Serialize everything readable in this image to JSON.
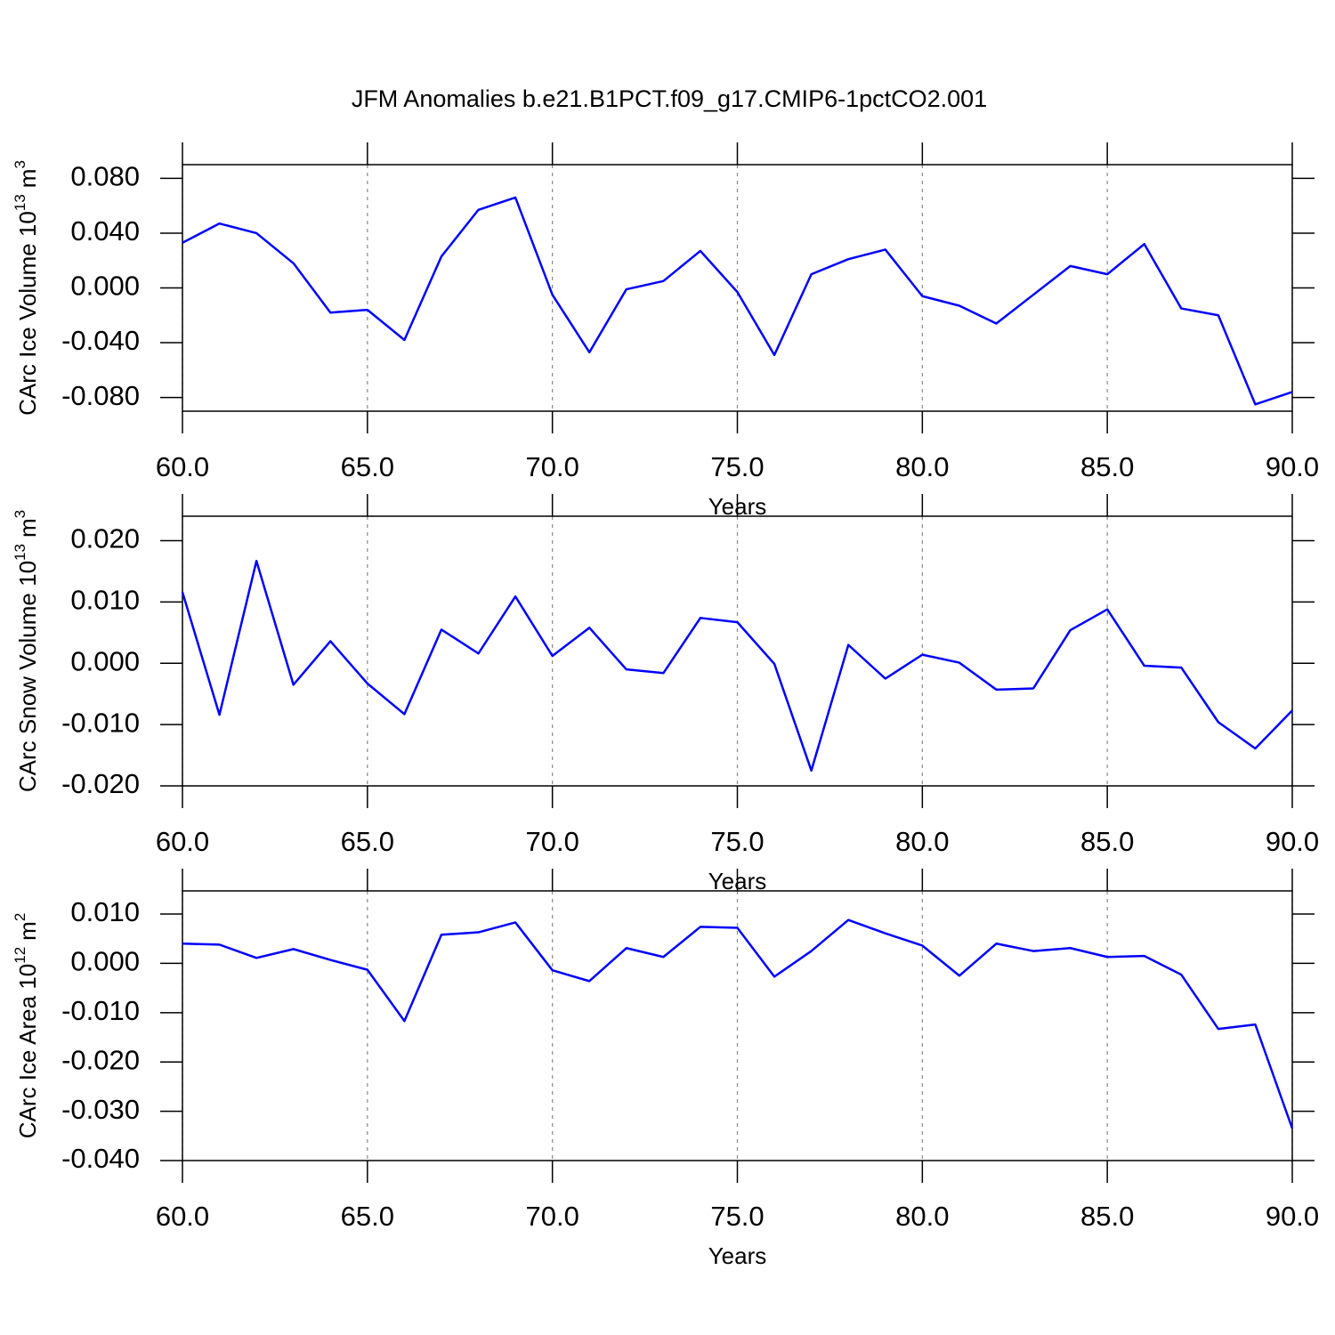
{
  "title": "JFM Anomalies b.e21.B1PCT.f09_g17.CMIP6-1pctCO2.001",
  "chart_data": [
    {
      "type": "line",
      "ylabel": [
        "CArc Ice Volume 10",
        "13",
        "m",
        "3"
      ],
      "xlabel": "Years",
      "x": [
        60,
        61,
        62,
        63,
        64,
        65,
        66,
        67,
        68,
        69,
        70,
        71,
        72,
        73,
        74,
        75,
        76,
        77,
        78,
        79,
        80,
        81,
        82,
        83,
        84,
        85,
        86,
        87,
        88,
        89,
        90
      ],
      "series": [
        {
          "color": "#0000ff",
          "values": [
            0.033,
            0.047,
            0.04,
            0.018,
            -0.018,
            -0.016,
            -0.038,
            0.023,
            0.057,
            0.066,
            -0.005,
            -0.047,
            -0.001,
            0.005,
            0.027,
            -0.003,
            -0.049,
            0.01,
            0.021,
            0.028,
            -0.006,
            -0.013,
            -0.026,
            -0.005,
            0.016,
            0.01,
            0.032,
            -0.015,
            -0.02,
            -0.085,
            -0.076
          ]
        }
      ],
      "xlim": [
        60,
        90
      ],
      "xticks": [
        {
          "value": 60,
          "label": "60.0"
        },
        {
          "value": 65,
          "label": "65.0"
        },
        {
          "value": 70,
          "label": "70.0"
        },
        {
          "value": 75,
          "label": "75.0"
        },
        {
          "value": 80,
          "label": "80.0"
        },
        {
          "value": 85,
          "label": "85.0"
        },
        {
          "value": 90,
          "label": "90.0"
        }
      ],
      "ylim": [
        -0.09,
        0.09
      ],
      "yticks": [
        {
          "value": -0.08,
          "label": "-0.080"
        },
        {
          "value": -0.04,
          "label": "-0.040"
        },
        {
          "value": 0,
          "label": "0.000"
        },
        {
          "value": 0.04,
          "label": "0.040"
        },
        {
          "value": 0.08,
          "label": "0.080"
        }
      ],
      "grid": true
    },
    {
      "type": "line",
      "ylabel": [
        "CArc Snow Volume 10",
        "13",
        "m",
        "3"
      ],
      "xlabel": "Years",
      "x": [
        60,
        61,
        62,
        63,
        64,
        65,
        66,
        67,
        68,
        69,
        70,
        71,
        72,
        73,
        74,
        75,
        76,
        77,
        78,
        79,
        80,
        81,
        82,
        83,
        84,
        85,
        86,
        87,
        88,
        89,
        90
      ],
      "series": [
        {
          "color": "#0000ff",
          "values": [
            0.0116,
            -0.0084,
            0.0167,
            -0.0035,
            0.0036,
            -0.0033,
            -0.0083,
            0.0055,
            0.0016,
            0.0109,
            0.0012,
            0.0058,
            -0.001,
            -0.0016,
            0.0074,
            0.0067,
            -0.0001,
            -0.0175,
            0.003,
            -0.0025,
            0.0014,
            0.0001,
            -0.0043,
            -0.0041,
            0.0054,
            0.0088,
            -0.0004,
            -0.0007,
            -0.0096,
            -0.0139,
            -0.0077
          ]
        }
      ],
      "xlim": [
        60,
        90
      ],
      "xticks": [
        {
          "value": 60,
          "label": "60.0"
        },
        {
          "value": 65,
          "label": "65.0"
        },
        {
          "value": 70,
          "label": "70.0"
        },
        {
          "value": 75,
          "label": "75.0"
        },
        {
          "value": 80,
          "label": "80.0"
        },
        {
          "value": 85,
          "label": "85.0"
        },
        {
          "value": 90,
          "label": "90.0"
        }
      ],
      "ylim": [
        -0.02,
        0.024
      ],
      "yticks": [
        {
          "value": -0.02,
          "label": "-0.020"
        },
        {
          "value": -0.01,
          "label": "-0.010"
        },
        {
          "value": 0,
          "label": "0.000"
        },
        {
          "value": 0.01,
          "label": "0.010"
        },
        {
          "value": 0.02,
          "label": "0.020"
        }
      ],
      "grid": true
    },
    {
      "type": "line",
      "ylabel": [
        "CArc Ice Area 10",
        "12",
        "m",
        "2"
      ],
      "xlabel": "Years",
      "x": [
        60,
        61,
        62,
        63,
        64,
        65,
        66,
        67,
        68,
        69,
        70,
        71,
        72,
        73,
        74,
        75,
        76,
        77,
        78,
        79,
        80,
        81,
        82,
        83,
        84,
        85,
        86,
        87,
        88,
        89,
        90
      ],
      "series": [
        {
          "color": "#0000ff",
          "values": [
            0.004,
            0.0038,
            0.0011,
            0.0029,
            0.0007,
            -0.0013,
            -0.0117,
            0.0058,
            0.0063,
            0.0083,
            -0.0014,
            -0.0036,
            0.0031,
            0.0013,
            0.0074,
            0.0072,
            -0.0027,
            0.0025,
            0.0088,
            0.0061,
            0.0036,
            -0.0025,
            0.004,
            0.0025,
            0.0031,
            0.0013,
            0.0015,
            -0.0023,
            -0.0133,
            -0.0124,
            -0.0335
          ]
        }
      ],
      "xlim": [
        60,
        90
      ],
      "xticks": [
        {
          "value": 60,
          "label": "60.0"
        },
        {
          "value": 65,
          "label": "65.0"
        },
        {
          "value": 70,
          "label": "70.0"
        },
        {
          "value": 75,
          "label": "75.0"
        },
        {
          "value": 80,
          "label": "80.0"
        },
        {
          "value": 85,
          "label": "85.0"
        },
        {
          "value": 90,
          "label": "90.0"
        }
      ],
      "ylim": [
        -0.04,
        0.0147
      ],
      "yticks": [
        {
          "value": -0.04,
          "label": "-0.040"
        },
        {
          "value": -0.03,
          "label": "-0.030"
        },
        {
          "value": -0.02,
          "label": "-0.020"
        },
        {
          "value": -0.01,
          "label": "-0.010"
        },
        {
          "value": 0,
          "label": "0.000"
        },
        {
          "value": 0.01,
          "label": "0.010"
        }
      ],
      "grid": true
    }
  ]
}
